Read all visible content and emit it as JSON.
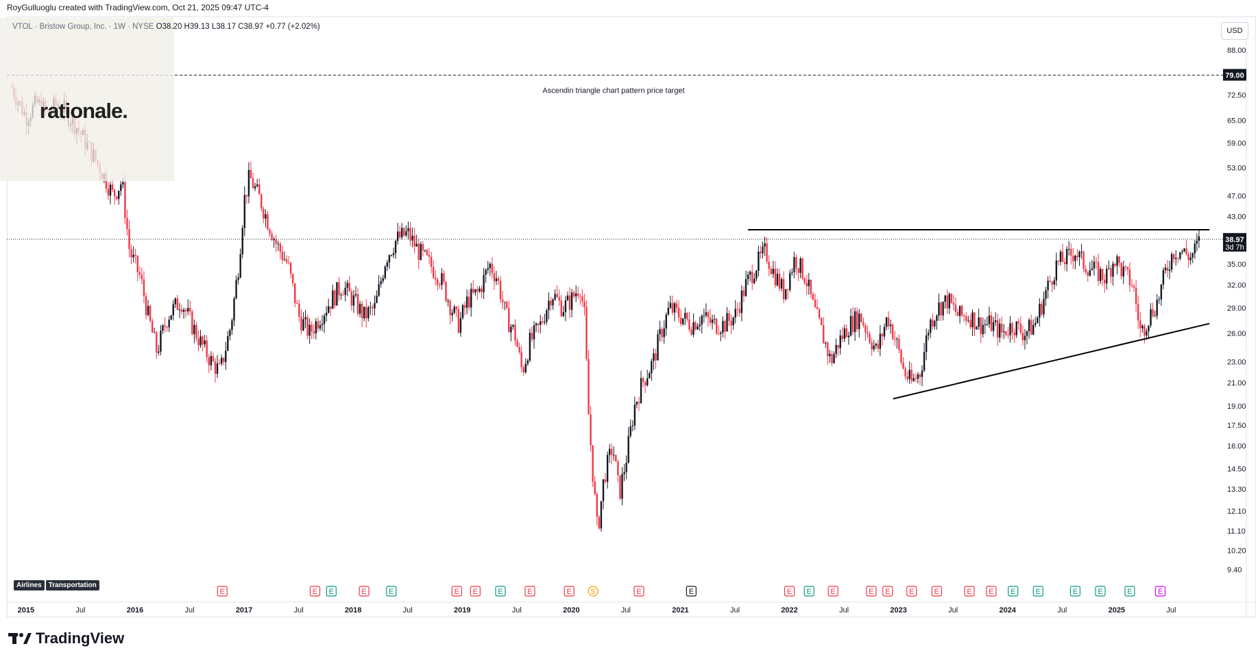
{
  "header": {
    "created_text": "RoyGulluoglu created with TradingView.com, Oct 21, 2025 09:47 UTC-4"
  },
  "legend": {
    "symbol": "VTOL · Bristow Group, Inc. · 1W · NYSE",
    "ohlc": "O38.20 H39.13 L38.17 C38.97 +0.77 (+2.02%)"
  },
  "logo": {
    "text": "rationale."
  },
  "currency": "USD",
  "tags": [
    "Airlines",
    "Transportation"
  ],
  "footer": {
    "brand": "TradingView"
  },
  "annotation": {
    "text": "Ascendin triangle chart pattern price target"
  },
  "chart_data": {
    "type": "candlestick",
    "title": "",
    "price_scale": "log",
    "y_ticks": [
      "88.00",
      "79.00",
      "72.50",
      "65.00",
      "59.00",
      "53.00",
      "47.00",
      "43.00",
      "38.97",
      "35.00",
      "32.00",
      "29.00",
      "26.00",
      "23.00",
      "21.00",
      "19.00",
      "17.50",
      "16.00",
      "14.50",
      "13.30",
      "12.10",
      "11.10",
      "10.20",
      "9.40"
    ],
    "y_tick_values": [
      88,
      79,
      72.5,
      65,
      59,
      53,
      47,
      43,
      38.97,
      35,
      32,
      29,
      26,
      23,
      21,
      19,
      17.5,
      16,
      14.5,
      13.3,
      12.1,
      11.1,
      10.2,
      9.4
    ],
    "ylim": [
      9.0,
      92.0
    ],
    "x_ticks": [
      "2015",
      "Jul",
      "2016",
      "Jul",
      "2017",
      "Jul",
      "2018",
      "Jul",
      "2019",
      "Jul",
      "2020",
      "Jul",
      "2021",
      "Jul",
      "2022",
      "Jul",
      "2023",
      "Jul",
      "2024",
      "Jul",
      "2025",
      "Jul"
    ],
    "x_tick_values": [
      2015.0,
      2015.5,
      2016.0,
      2016.5,
      2017.0,
      2017.5,
      2018.0,
      2018.5,
      2019.0,
      2019.5,
      2020.0,
      2020.5,
      2021.0,
      2021.5,
      2022.0,
      2022.5,
      2023.0,
      2023.5,
      2024.0,
      2024.5,
      2025.0,
      2025.5
    ],
    "xlim": [
      2014.85,
      2025.95
    ],
    "last_price": {
      "value": 38.97,
      "label": "38.97",
      "countdown": "3d 7h"
    },
    "price_target": {
      "value": 79.0,
      "label": "79.00"
    },
    "price_path": [
      [
        2014.87,
        75
      ],
      [
        2015.0,
        66
      ],
      [
        2015.1,
        70
      ],
      [
        2015.2,
        67
      ],
      [
        2015.3,
        70
      ],
      [
        2015.45,
        64
      ],
      [
        2015.55,
        59
      ],
      [
        2015.7,
        52
      ],
      [
        2015.8,
        47
      ],
      [
        2015.88,
        50
      ],
      [
        2015.95,
        37
      ],
      [
        2016.05,
        33
      ],
      [
        2016.12,
        28
      ],
      [
        2016.2,
        24
      ],
      [
        2016.3,
        28
      ],
      [
        2016.42,
        30
      ],
      [
        2016.52,
        27
      ],
      [
        2016.6,
        25
      ],
      [
        2016.7,
        23
      ],
      [
        2016.78,
        22
      ],
      [
        2016.88,
        27
      ],
      [
        2016.95,
        35
      ],
      [
        2017.0,
        46
      ],
      [
        2017.05,
        51
      ],
      [
        2017.15,
        46
      ],
      [
        2017.22,
        42
      ],
      [
        2017.3,
        38
      ],
      [
        2017.4,
        35
      ],
      [
        2017.5,
        28
      ],
      [
        2017.6,
        26
      ],
      [
        2017.7,
        28
      ],
      [
        2017.8,
        30
      ],
      [
        2017.9,
        32
      ],
      [
        2018.0,
        30
      ],
      [
        2018.1,
        28
      ],
      [
        2018.2,
        29
      ],
      [
        2018.3,
        36
      ],
      [
        2018.4,
        39
      ],
      [
        2018.5,
        40
      ],
      [
        2018.6,
        37
      ],
      [
        2018.7,
        35
      ],
      [
        2018.8,
        33
      ],
      [
        2018.9,
        29
      ],
      [
        2018.97,
        27
      ],
      [
        2019.05,
        30
      ],
      [
        2019.15,
        31
      ],
      [
        2019.25,
        35
      ],
      [
        2019.32,
        33
      ],
      [
        2019.4,
        28
      ],
      [
        2019.48,
        26
      ],
      [
        2019.55,
        22
      ],
      [
        2019.62,
        25
      ],
      [
        2019.72,
        27
      ],
      [
        2019.82,
        31
      ],
      [
        2019.92,
        29
      ],
      [
        2020.0,
        30
      ],
      [
        2020.08,
        32
      ],
      [
        2020.12,
        28
      ],
      [
        2020.16,
        18
      ],
      [
        2020.2,
        14
      ],
      [
        2020.24,
        11
      ],
      [
        2020.3,
        14
      ],
      [
        2020.38,
        16
      ],
      [
        2020.44,
        13
      ],
      [
        2020.5,
        15
      ],
      [
        2020.58,
        19
      ],
      [
        2020.65,
        21
      ],
      [
        2020.75,
        23
      ],
      [
        2020.82,
        26
      ],
      [
        2020.9,
        29
      ],
      [
        2021.0,
        28
      ],
      [
        2021.1,
        27
      ],
      [
        2021.2,
        28
      ],
      [
        2021.3,
        27
      ],
      [
        2021.4,
        27
      ],
      [
        2021.5,
        28
      ],
      [
        2021.6,
        32
      ],
      [
        2021.7,
        35
      ],
      [
        2021.78,
        37
      ],
      [
        2021.85,
        34
      ],
      [
        2021.95,
        31
      ],
      [
        2022.05,
        36
      ],
      [
        2022.15,
        33
      ],
      [
        2022.22,
        29
      ],
      [
        2022.3,
        26
      ],
      [
        2022.38,
        23
      ],
      [
        2022.45,
        25
      ],
      [
        2022.55,
        27
      ],
      [
        2022.65,
        28
      ],
      [
        2022.72,
        26
      ],
      [
        2022.8,
        24
      ],
      [
        2022.9,
        28
      ],
      [
        2022.98,
        25
      ],
      [
        2023.05,
        22
      ],
      [
        2023.12,
        21
      ],
      [
        2023.2,
        22
      ],
      [
        2023.28,
        27
      ],
      [
        2023.36,
        29
      ],
      [
        2023.45,
        30
      ],
      [
        2023.55,
        28
      ],
      [
        2023.65,
        28
      ],
      [
        2023.75,
        27
      ],
      [
        2023.85,
        27
      ],
      [
        2023.95,
        26
      ],
      [
        2024.05,
        27
      ],
      [
        2024.15,
        26
      ],
      [
        2024.25,
        27
      ],
      [
        2024.35,
        31
      ],
      [
        2024.45,
        35
      ],
      [
        2024.55,
        36
      ],
      [
        2024.62,
        37
      ],
      [
        2024.7,
        35
      ],
      [
        2024.8,
        34
      ],
      [
        2024.9,
        33
      ],
      [
        2024.98,
        36
      ],
      [
        2025.05,
        34
      ],
      [
        2025.15,
        32
      ],
      [
        2025.22,
        26
      ],
      [
        2025.3,
        28
      ],
      [
        2025.38,
        30
      ],
      [
        2025.45,
        34
      ],
      [
        2025.52,
        37
      ],
      [
        2025.6,
        37
      ],
      [
        2025.68,
        36
      ],
      [
        2025.77,
        38.97
      ]
    ]
  }
}
